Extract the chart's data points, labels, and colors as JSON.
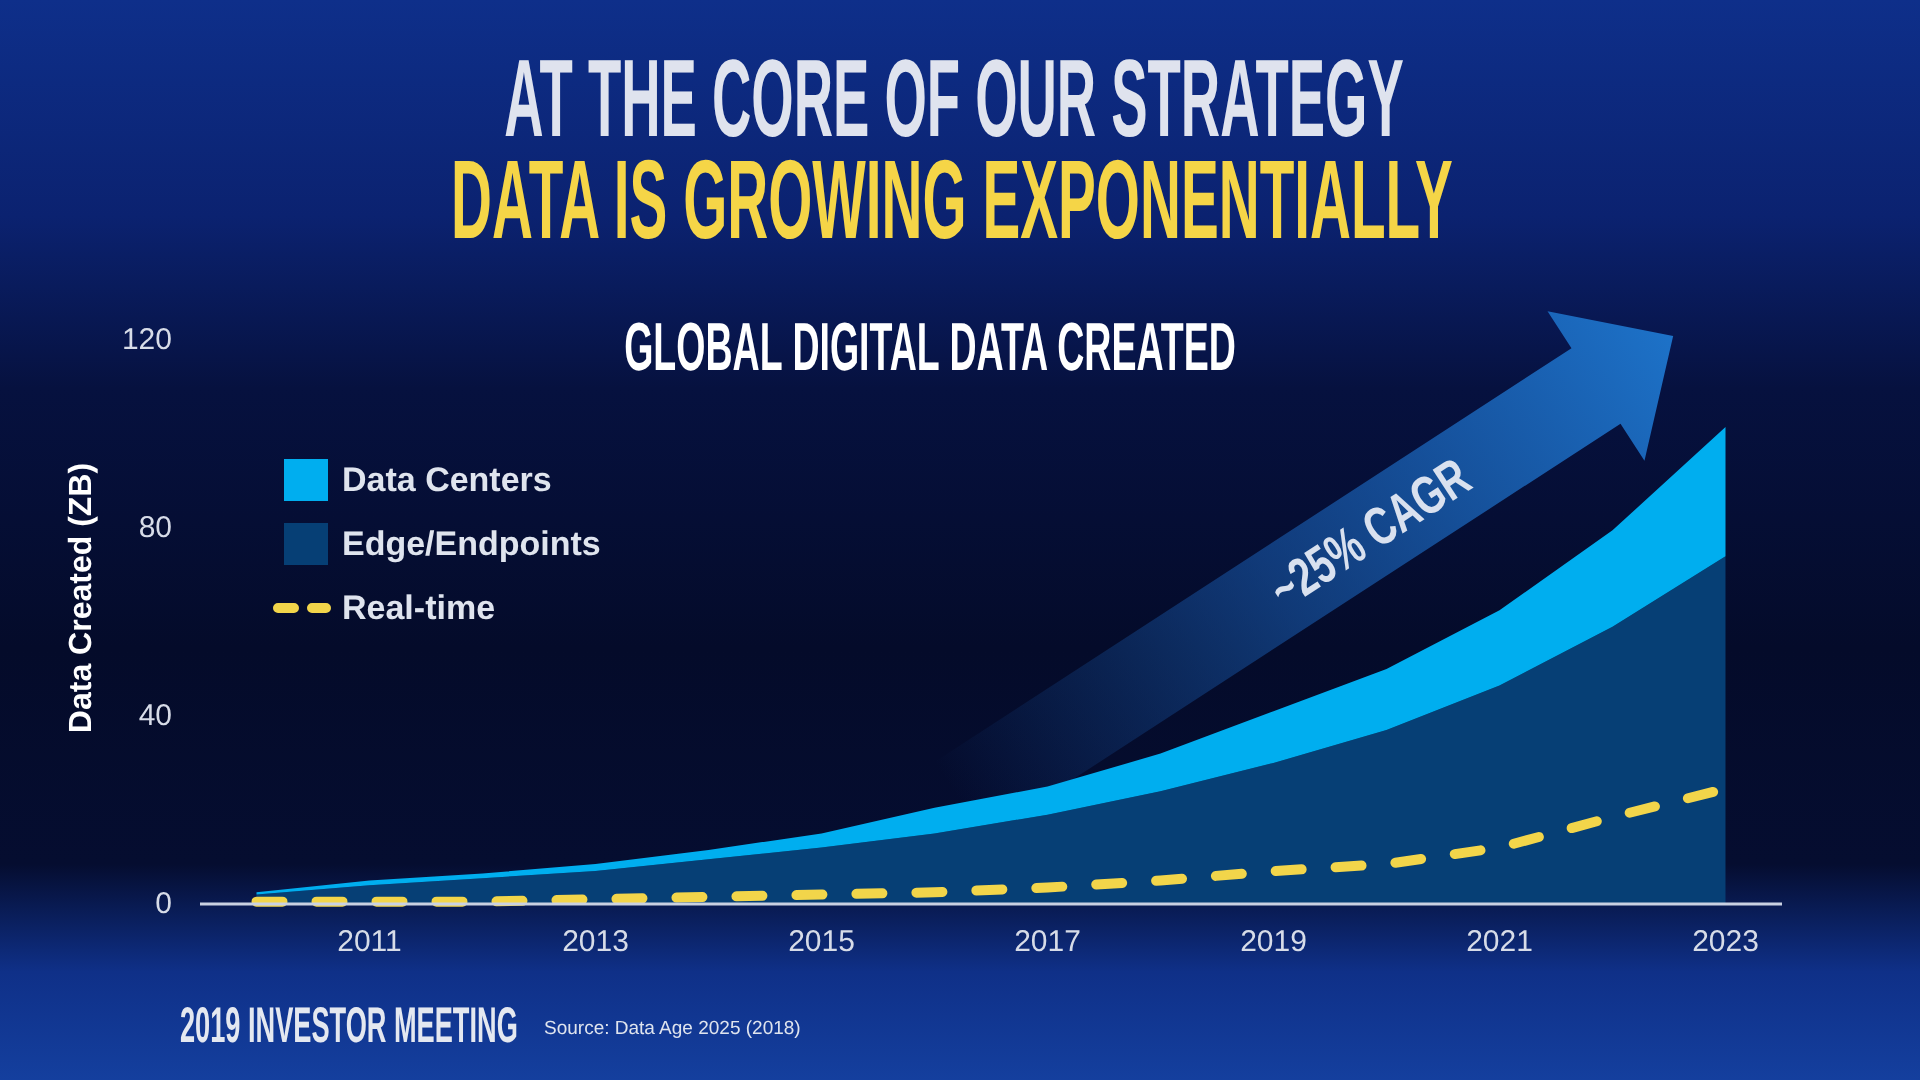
{
  "chart_data": {
    "type": "area",
    "title": "AT THE CORE OF OUR STRATEGY",
    "subtitle": "DATA IS GROWING EXPONENTIALLY",
    "ylabel": "Data Created (ZB)",
    "annotations": [
      "GLOBAL DIGITAL DATA CREATED",
      "~25% CAGR",
      "2019 INVESTOR MEETING",
      "Source: Data Age 2025 (2018)"
    ],
    "x": [
      2010,
      2011,
      2012,
      2013,
      2014,
      2015,
      2016,
      2017,
      2018,
      2019,
      2020,
      2021,
      2022,
      2023
    ],
    "stacked": true,
    "series": [
      {
        "name": "Edge/Endpoints",
        "color": "#063f75",
        "values": [
          2,
          4,
          5.5,
          7,
          9.5,
          12,
          15,
          19,
          24,
          30,
          37,
          46.5,
          59,
          74
        ]
      },
      {
        "name": "Data Centers",
        "color": "#00aeef",
        "values": [
          0.5,
          1,
          1,
          1.5,
          2,
          3,
          5.5,
          6,
          8,
          11,
          13,
          16,
          20.5,
          27.5
        ]
      },
      {
        "name": "Real-time",
        "type": "line",
        "line_style": "dashed",
        "color": "#f2d54a",
        "values": [
          0.5,
          0.5,
          0.5,
          1,
          1.5,
          2,
          2.5,
          3.5,
          5,
          7,
          8.5,
          12,
          18.5,
          24.5
        ]
      }
    ],
    "xlim": [
      2009.5,
      2023.5
    ],
    "xticks": [
      2011,
      2013,
      2015,
      2017,
      2019,
      2021,
      2023
    ],
    "ylim": [
      0,
      120
    ],
    "yticks": [
      0,
      40,
      80,
      120
    ],
    "legend": "top left"
  }
}
